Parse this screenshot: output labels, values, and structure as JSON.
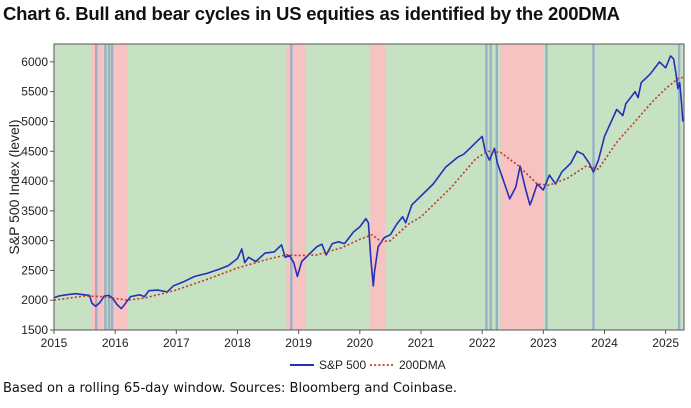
{
  "page": {
    "title": "Chart 6. Bull and bear cycles in US equities as identified by the 200DMA",
    "source": "Based on a rolling 65-day window. Sources: Bloomberg and Coinbase."
  },
  "chart_data": {
    "type": "line",
    "ylabel": "S&P 500 Index (level)",
    "xlabel": "",
    "xlim": [
      2015.0,
      2025.3
    ],
    "ylim": [
      1500,
      6300
    ],
    "xticks": [
      "2015",
      "2016",
      "2017",
      "2018",
      "2019",
      "2020",
      "2021",
      "2022",
      "2023",
      "2024",
      "2025"
    ],
    "yticks": [
      1500,
      2000,
      2500,
      3000,
      3500,
      4000,
      4500,
      5000,
      5500,
      6000
    ],
    "grid": false,
    "legend_position": "bottom-center",
    "colors": {
      "bull": "#c6e2c2",
      "bear": "#f7c2c2",
      "transition": "#9ab0c6",
      "sp500": "#2430b8",
      "dma": "#c0392b"
    },
    "regimes_bear": [
      [
        2015.62,
        2015.8
      ],
      [
        2015.98,
        2016.2
      ],
      [
        2018.8,
        2019.12
      ],
      [
        2020.17,
        2020.42
      ],
      [
        2022.3,
        2023.0
      ]
    ],
    "regimes_transition": [
      2015.69,
      2015.84,
      2015.9,
      2015.95,
      2018.88,
      2022.07,
      2022.14,
      2022.24,
      2023.05,
      2023.82,
      2025.22
    ],
    "series": [
      {
        "name": "S&P 500",
        "style": "solid",
        "x": [
          2015.0,
          2015.08,
          2015.2,
          2015.35,
          2015.5,
          2015.58,
          2015.62,
          2015.68,
          2015.75,
          2015.82,
          2015.9,
          2015.96,
          2016.03,
          2016.1,
          2016.17,
          2016.25,
          2016.4,
          2016.48,
          2016.55,
          2016.7,
          2016.85,
          2016.95,
          2017.1,
          2017.3,
          2017.5,
          2017.7,
          2017.85,
          2018.0,
          2018.07,
          2018.12,
          2018.18,
          2018.3,
          2018.45,
          2018.6,
          2018.72,
          2018.78,
          2018.85,
          2018.92,
          2018.98,
          2019.05,
          2019.15,
          2019.3,
          2019.38,
          2019.45,
          2019.55,
          2019.65,
          2019.75,
          2019.9,
          2020.0,
          2020.1,
          2020.14,
          2020.18,
          2020.22,
          2020.24,
          2020.3,
          2020.4,
          2020.5,
          2020.6,
          2020.7,
          2020.75,
          2020.85,
          2021.0,
          2021.2,
          2021.4,
          2021.6,
          2021.7,
          2021.8,
          2021.95,
          2022.0,
          2022.05,
          2022.12,
          2022.2,
          2022.25,
          2022.35,
          2022.45,
          2022.55,
          2022.62,
          2022.7,
          2022.78,
          2022.82,
          2022.9,
          2023.0,
          2023.1,
          2023.2,
          2023.3,
          2023.45,
          2023.55,
          2023.65,
          2023.75,
          2023.82,
          2023.9,
          2024.0,
          2024.2,
          2024.3,
          2024.35,
          2024.5,
          2024.55,
          2024.6,
          2024.75,
          2024.9,
          2025.0,
          2025.08,
          2025.13,
          2025.17,
          2025.2,
          2025.23,
          2025.26,
          2025.28
        ],
        "y": [
          2040,
          2070,
          2090,
          2110,
          2090,
          2080,
          1950,
          1900,
          1960,
          2070,
          2080,
          2030,
          1930,
          1860,
          1950,
          2060,
          2090,
          2060,
          2160,
          2170,
          2140,
          2240,
          2300,
          2400,
          2450,
          2520,
          2580,
          2700,
          2860,
          2630,
          2720,
          2650,
          2790,
          2810,
          2930,
          2720,
          2750,
          2630,
          2400,
          2650,
          2750,
          2900,
          2940,
          2760,
          2950,
          2980,
          2950,
          3150,
          3230,
          3370,
          3300,
          2700,
          2240,
          2480,
          2900,
          3050,
          3100,
          3270,
          3400,
          3300,
          3600,
          3750,
          3950,
          4230,
          4400,
          4450,
          4550,
          4700,
          4750,
          4500,
          4350,
          4550,
          4300,
          4000,
          3700,
          3900,
          4250,
          3900,
          3600,
          3700,
          3950,
          3850,
          4100,
          3950,
          4150,
          4300,
          4500,
          4450,
          4300,
          4150,
          4350,
          4750,
          5200,
          5100,
          5300,
          5500,
          5400,
          5650,
          5800,
          6000,
          5900,
          6100,
          6050,
          5800,
          5550,
          5650,
          5300,
          5000
        ]
      },
      {
        "name": "200DMA",
        "style": "dotted",
        "x": [
          2015.0,
          2015.5,
          2015.8,
          2016.2,
          2016.5,
          2017.0,
          2017.5,
          2018.0,
          2018.5,
          2018.8,
          2019.0,
          2019.3,
          2019.7,
          2020.0,
          2020.2,
          2020.35,
          2020.5,
          2020.8,
          2021.0,
          2021.5,
          2021.9,
          2022.1,
          2022.3,
          2022.6,
          2022.9,
          2023.1,
          2023.4,
          2023.7,
          2023.9,
          2024.2,
          2024.5,
          2024.8,
          2025.0,
          2025.2,
          2025.28
        ],
        "y": [
          2000,
          2070,
          2060,
          2000,
          2040,
          2170,
          2350,
          2540,
          2690,
          2760,
          2750,
          2760,
          2880,
          3020,
          3100,
          2980,
          3000,
          3280,
          3400,
          3900,
          4380,
          4500,
          4480,
          4250,
          3950,
          3930,
          4050,
          4250,
          4200,
          4650,
          5000,
          5350,
          5550,
          5720,
          5740
        ]
      }
    ]
  }
}
